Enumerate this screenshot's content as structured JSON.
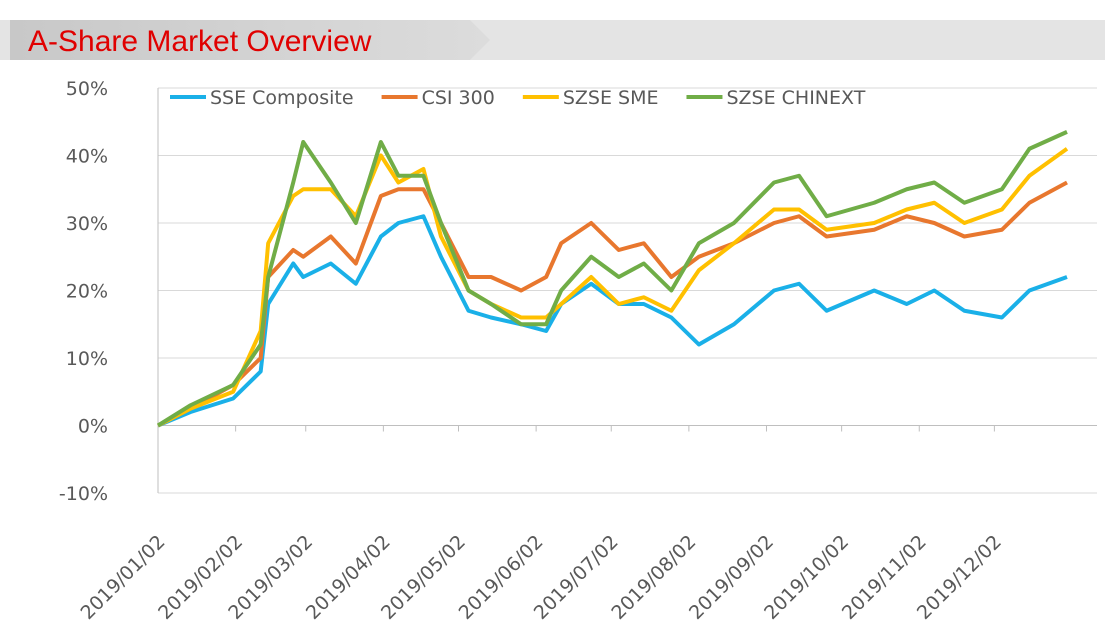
{
  "title": "A-Share Market Overview",
  "chart_data": {
    "type": "line",
    "x": [
      "2019/01/02",
      "2019/01/15",
      "2019/02/01",
      "2019/02/12",
      "2019/02/15",
      "2019/02/25",
      "2019/03/01",
      "2019/03/12",
      "2019/03/22",
      "2019/04/01",
      "2019/04/08",
      "2019/04/18",
      "2019/04/25",
      "2019/05/06",
      "2019/05/15",
      "2019/05/27",
      "2019/06/06",
      "2019/06/12",
      "2019/06/24",
      "2019/07/05",
      "2019/07/15",
      "2019/07/26",
      "2019/08/06",
      "2019/08/20",
      "2019/09/05",
      "2019/09/15",
      "2019/09/26",
      "2019/10/15",
      "2019/10/28",
      "2019/11/08",
      "2019/11/20",
      "2019/12/05",
      "2019/12/16",
      "2019/12/31"
    ],
    "series": [
      {
        "name": "SSE Composite",
        "color": "#1ab0e8",
        "values": [
          0,
          2,
          4,
          8,
          18,
          24,
          22,
          24,
          21,
          28,
          30,
          31,
          25,
          17,
          16,
          15,
          14,
          18,
          21,
          18,
          18,
          16,
          12,
          15,
          20,
          21,
          17,
          20,
          18,
          20,
          17,
          16,
          20,
          22
        ]
      },
      {
        "name": "CSI 300",
        "color": "#e8772e",
        "values": [
          0,
          2.5,
          6,
          10,
          22,
          26,
          25,
          28,
          24,
          34,
          35,
          35,
          30,
          22,
          22,
          20,
          22,
          27,
          30,
          26,
          27,
          22,
          25,
          27,
          30,
          31,
          28,
          29,
          31,
          30,
          28,
          29,
          33,
          36
        ]
      },
      {
        "name": "SZSE SME",
        "color": "#ffc000",
        "values": [
          0,
          2.5,
          5,
          14,
          27,
          34,
          35,
          35,
          31,
          40,
          36,
          38,
          28,
          20,
          18,
          16,
          16,
          18,
          22,
          18,
          19,
          17,
          23,
          27,
          32,
          32,
          29,
          30,
          32,
          33,
          30,
          32,
          37,
          41
        ]
      },
      {
        "name": "SZSE CHINEXT",
        "color": "#70ad47",
        "values": [
          0,
          3,
          6,
          12,
          22,
          36,
          42,
          36,
          30,
          42,
          37,
          37,
          30,
          20,
          18,
          15,
          15,
          20,
          25,
          22,
          24,
          20,
          27,
          30,
          36,
          37,
          31,
          33,
          35,
          36,
          33,
          35,
          41,
          43.5
        ]
      }
    ],
    "xlim": [
      "2019/01/02",
      "2019/12/31"
    ],
    "xticks": [
      "2019/01/02",
      "2019/02/02",
      "2019/03/02",
      "2019/04/02",
      "2019/05/02",
      "2019/06/02",
      "2019/07/02",
      "2019/08/02",
      "2019/09/02",
      "2019/10/02",
      "2019/11/02",
      "2019/12/02"
    ],
    "ylim": [
      -10,
      50
    ],
    "yticks": [
      {
        "value": -10,
        "label": "-10%"
      },
      {
        "value": 0,
        "label": "0%"
      },
      {
        "value": 10,
        "label": "10%"
      },
      {
        "value": 20,
        "label": "20%"
      },
      {
        "value": 30,
        "label": "30%"
      },
      {
        "value": 40,
        "label": "40%"
      },
      {
        "value": 50,
        "label": "50%"
      }
    ],
    "grid": true,
    "legend": "top"
  }
}
